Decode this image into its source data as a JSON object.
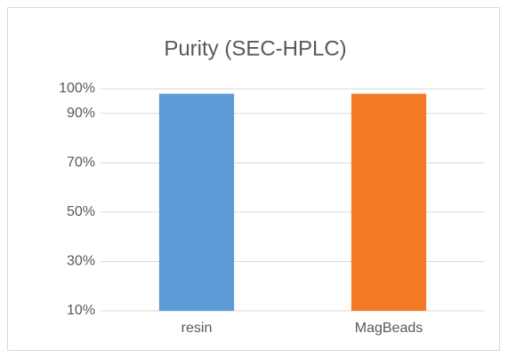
{
  "chart_data": {
    "type": "bar",
    "title": "Purity (SEC-HPLC)",
    "categories": [
      "resin",
      "MagBeads"
    ],
    "values": [
      98,
      98
    ],
    "colors": [
      "#5b9bd5",
      "#f47a25"
    ],
    "ylim": [
      10,
      100
    ],
    "yticks": [
      {
        "value": 10,
        "label": "10%"
      },
      {
        "value": 30,
        "label": "30%"
      },
      {
        "value": 50,
        "label": "50%"
      },
      {
        "value": 70,
        "label": "70%"
      },
      {
        "value": 90,
        "label": "90%"
      },
      {
        "value": 100,
        "label": "100%"
      }
    ],
    "grid": true
  }
}
